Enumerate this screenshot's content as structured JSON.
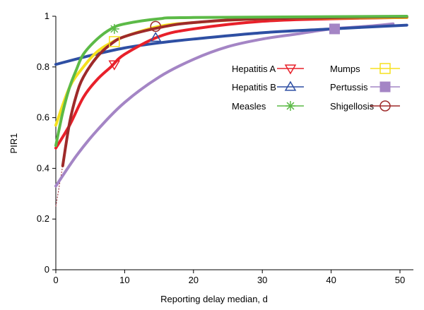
{
  "chart_data": {
    "type": "line",
    "title": "",
    "xlabel": "Reporting delay median, d",
    "ylabel": "PIR1",
    "xlim": [
      0,
      52
    ],
    "ylim": [
      0,
      1
    ],
    "x_ticks": [
      "0",
      "10",
      "20",
      "30",
      "40",
      "50"
    ],
    "y_ticks": [
      "0",
      "0.2",
      "0.4",
      "0.6",
      "0.8",
      "1"
    ],
    "grid": false,
    "legend_position": "right-center",
    "series": [
      {
        "name": "Hepatitis A",
        "color": "#e8202a",
        "marker": "triangle-down",
        "marker_point": {
          "x": 8.5,
          "y": 0.81
        },
        "points": [
          [
            0,
            0.48
          ],
          [
            2,
            0.57
          ],
          [
            4,
            0.68
          ],
          [
            6,
            0.75
          ],
          [
            8,
            0.8
          ],
          [
            10,
            0.85
          ],
          [
            15,
            0.92
          ],
          [
            20,
            0.95
          ],
          [
            30,
            0.98
          ],
          [
            40,
            0.99
          ],
          [
            51,
            0.995
          ]
        ]
      },
      {
        "name": "Hepatitis B",
        "color": "#2e4fa3",
        "marker": "triangle-up",
        "marker_point": {
          "x": 14.5,
          "y": 0.915
        },
        "points": [
          [
            0,
            0.81
          ],
          [
            5,
            0.845
          ],
          [
            10,
            0.875
          ],
          [
            15,
            0.895
          ],
          [
            20,
            0.91
          ],
          [
            30,
            0.935
          ],
          [
            40,
            0.95
          ],
          [
            51,
            0.965
          ]
        ]
      },
      {
        "name": "Measles",
        "color": "#5cba47",
        "marker": "asterisk",
        "marker_point": {
          "x": 8.5,
          "y": 0.95
        },
        "points": [
          [
            0,
            0.49
          ],
          [
            1,
            0.62
          ],
          [
            2,
            0.72
          ],
          [
            3,
            0.79
          ],
          [
            4,
            0.85
          ],
          [
            6,
            0.91
          ],
          [
            8,
            0.95
          ],
          [
            10,
            0.97
          ],
          [
            15,
            0.99
          ],
          [
            20,
            0.995
          ],
          [
            51,
            1.0
          ]
        ]
      },
      {
        "name": "Mumps",
        "color": "#f5e11e",
        "marker": "square-open",
        "marker_point": {
          "x": 8.5,
          "y": 0.9
        },
        "points": [
          [
            0,
            0.57
          ],
          [
            2,
            0.72
          ],
          [
            4,
            0.8
          ],
          [
            6,
            0.86
          ],
          [
            8,
            0.895
          ],
          [
            10,
            0.92
          ],
          [
            15,
            0.96
          ],
          [
            20,
            0.975
          ],
          [
            30,
            0.99
          ],
          [
            51,
            0.995
          ]
        ]
      },
      {
        "name": "Pertussis",
        "color": "#a485c5",
        "marker": "square-filled",
        "marker_point": {
          "x": 40.5,
          "y": 0.95
        },
        "points": [
          [
            0,
            0.33
          ],
          [
            3,
            0.45
          ],
          [
            6,
            0.55
          ],
          [
            10,
            0.66
          ],
          [
            15,
            0.76
          ],
          [
            20,
            0.83
          ],
          [
            25,
            0.88
          ],
          [
            30,
            0.91
          ],
          [
            35,
            0.93
          ],
          [
            40,
            0.95
          ],
          [
            45,
            0.96
          ],
          [
            49,
            0.97
          ]
        ]
      },
      {
        "name": "Shigellosis",
        "color": "#9e2a2a",
        "marker": "circle-open",
        "marker_point": {
          "x": 14.5,
          "y": 0.96
        },
        "points": [
          [
            1,
            0.41
          ],
          [
            2,
            0.58
          ],
          [
            3,
            0.69
          ],
          [
            4,
            0.76
          ],
          [
            6,
            0.84
          ],
          [
            8,
            0.89
          ],
          [
            10,
            0.92
          ],
          [
            15,
            0.955
          ],
          [
            20,
            0.975
          ],
          [
            30,
            0.99
          ],
          [
            51,
            0.998
          ]
        ]
      }
    ],
    "pertussis_dashed_extension": [
      [
        0,
        0.25
      ],
      [
        0.5,
        0.33
      ]
    ],
    "shigellosis_dashed_extension": [
      [
        0,
        0.25
      ],
      [
        1,
        0.41
      ]
    ]
  }
}
